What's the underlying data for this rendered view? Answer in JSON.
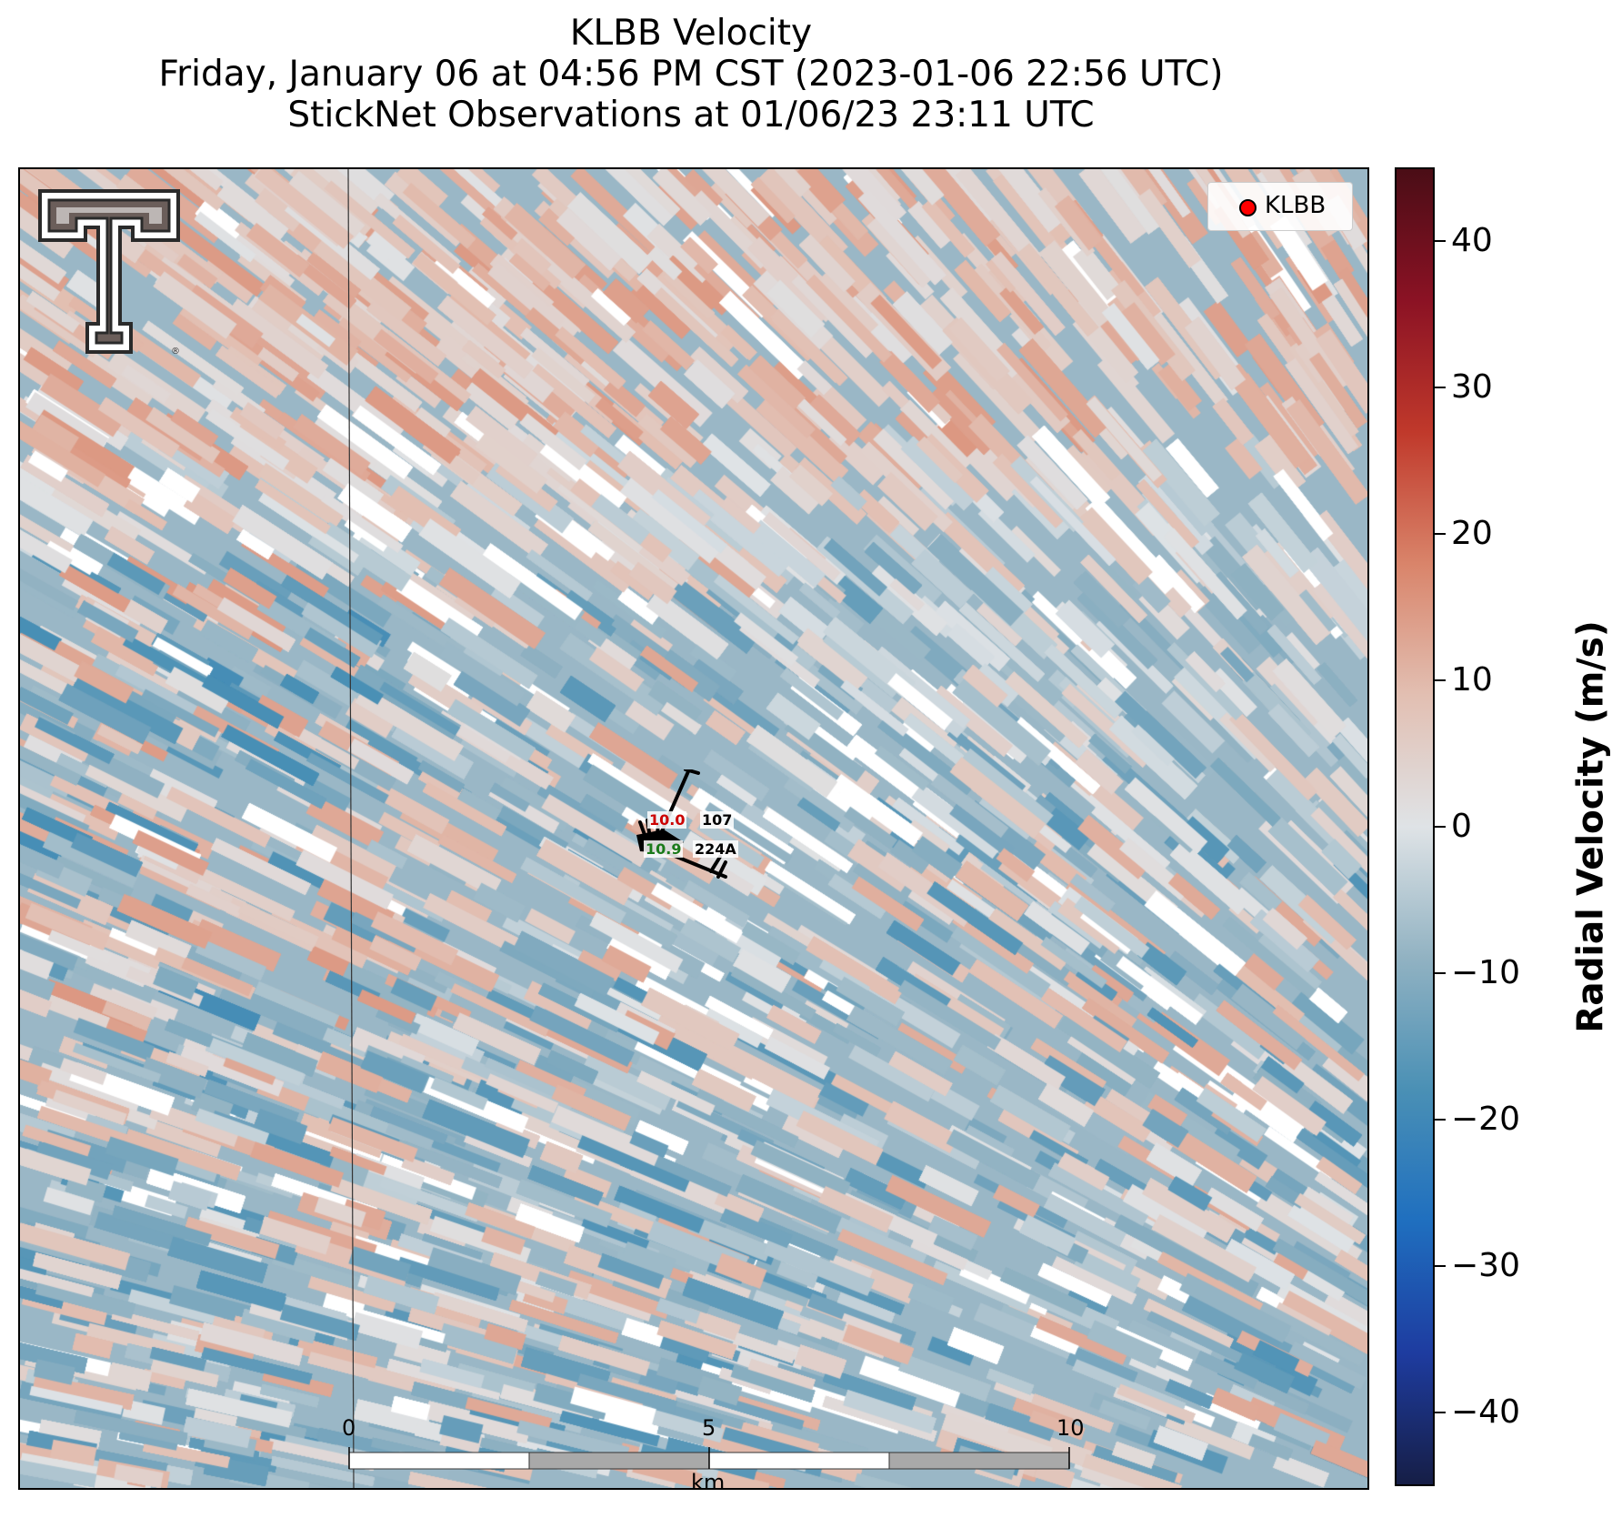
{
  "title": {
    "line1": "KLBB Velocity",
    "line2": "Friday, January 06 at 04:56 PM CST (2023-01-06 22:56 UTC)",
    "line3": "StickNet Observations at 01/06/23 23:11 UTC"
  },
  "legend": {
    "label": "KLBB",
    "marker_color": "#ff0000"
  },
  "stations": {
    "items": [
      {
        "temp": "10.0",
        "dewpoint": "10.9",
        "id_top": "107",
        "id_bottom": "224A"
      }
    ],
    "temp_color": "#cc0000",
    "dewpoint_color": "#1a7a1a"
  },
  "scale_bar": {
    "ticks": [
      "0",
      "5",
      "10"
    ],
    "unit": "km"
  },
  "colorbar": {
    "label": "Radial Velocity (m/s)",
    "range": [
      -45,
      45
    ],
    "ticks": [
      40,
      30,
      20,
      10,
      0,
      -10,
      -20,
      -30,
      -40
    ],
    "tick_labels": [
      "40",
      "30",
      "20",
      "10",
      "0",
      "−10",
      "−20",
      "−30",
      "−40"
    ],
    "colormap": [
      "#161e46",
      "#1e3ca0",
      "#1f6fbf",
      "#4a90b5",
      "#91b2c2",
      "#dfe3e6",
      "#e2bfb2",
      "#d9846a",
      "#c0392b",
      "#8b1224",
      "#4a0d16"
    ]
  },
  "logo": {
    "icon": "texas-tech-double-t-logo"
  }
}
